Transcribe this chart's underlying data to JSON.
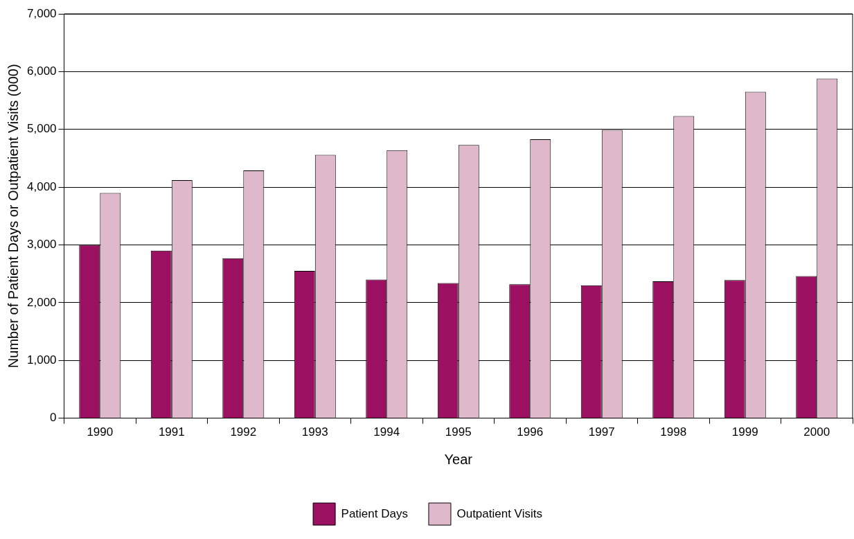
{
  "chart_data": {
    "type": "bar",
    "xlabel": "Year",
    "ylabel": "Number of Patient Days or Outpatient Visits (000)",
    "categories": [
      "1990",
      "1991",
      "1992",
      "1993",
      "1994",
      "1995",
      "1996",
      "1997",
      "1998",
      "1999",
      "2000"
    ],
    "series": [
      {
        "name": "Patient Days",
        "color": "#9b1060",
        "values": [
          3000,
          2900,
          2770,
          2550,
          2400,
          2340,
          2320,
          2300,
          2370,
          2390,
          2460
        ]
      },
      {
        "name": "Outpatient Visits",
        "color": "#e0b8cc",
        "values": [
          3900,
          4120,
          4290,
          4560,
          4640,
          4730,
          4830,
          4990,
          5230,
          5650,
          5880
        ]
      }
    ],
    "ylim": [
      0,
      7000
    ],
    "yticks": [
      0,
      {
        "value": 1000,
        "label": "1,000"
      },
      {
        "value": 2000,
        "label": "2,000"
      },
      {
        "value": 3000,
        "label": "3,000"
      },
      {
        "value": 4000,
        "label": "4,000"
      },
      {
        "value": 5000,
        "label": "5,000"
      },
      {
        "value": 6000,
        "label": "6,000"
      },
      {
        "value": 7000,
        "label": "7,000"
      }
    ],
    "grid": "y",
    "legend": "bottom"
  }
}
